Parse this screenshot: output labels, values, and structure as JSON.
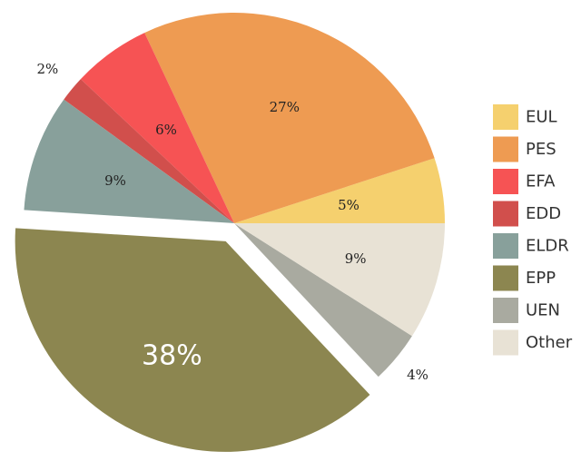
{
  "chart_data": {
    "type": "pie",
    "title": "",
    "legend_position": "right",
    "exploded": [
      "EPP"
    ],
    "slices": [
      {
        "name": "EUL",
        "value": 5,
        "label": "5%",
        "color": "#F5D06E",
        "label_color": "#222222"
      },
      {
        "name": "PES",
        "value": 27,
        "label": "27%",
        "color": "#EE9B52",
        "label_color": "#222222"
      },
      {
        "name": "EFA",
        "value": 6,
        "label": "6%",
        "color": "#F65354",
        "label_color": "#222222"
      },
      {
        "name": "EDD",
        "value": 2,
        "label": "2%",
        "color": "#D14F4C",
        "label_color": "#D14F4C"
      },
      {
        "name": "ELDR",
        "value": 9,
        "label": "9%",
        "color": "#88A09B",
        "label_color": "#222222"
      },
      {
        "name": "EPP",
        "value": 38,
        "label": "38%",
        "color": "#8C8650",
        "label_color": "#ffffff"
      },
      {
        "name": "UEN",
        "value": 4,
        "label": "4%",
        "color": "#A9AAA0",
        "label_color": "#A9AAA0"
      },
      {
        "name": "Other",
        "value": 9,
        "label": "9%",
        "color": "#E8E2D5",
        "label_color": "#222222"
      }
    ]
  }
}
